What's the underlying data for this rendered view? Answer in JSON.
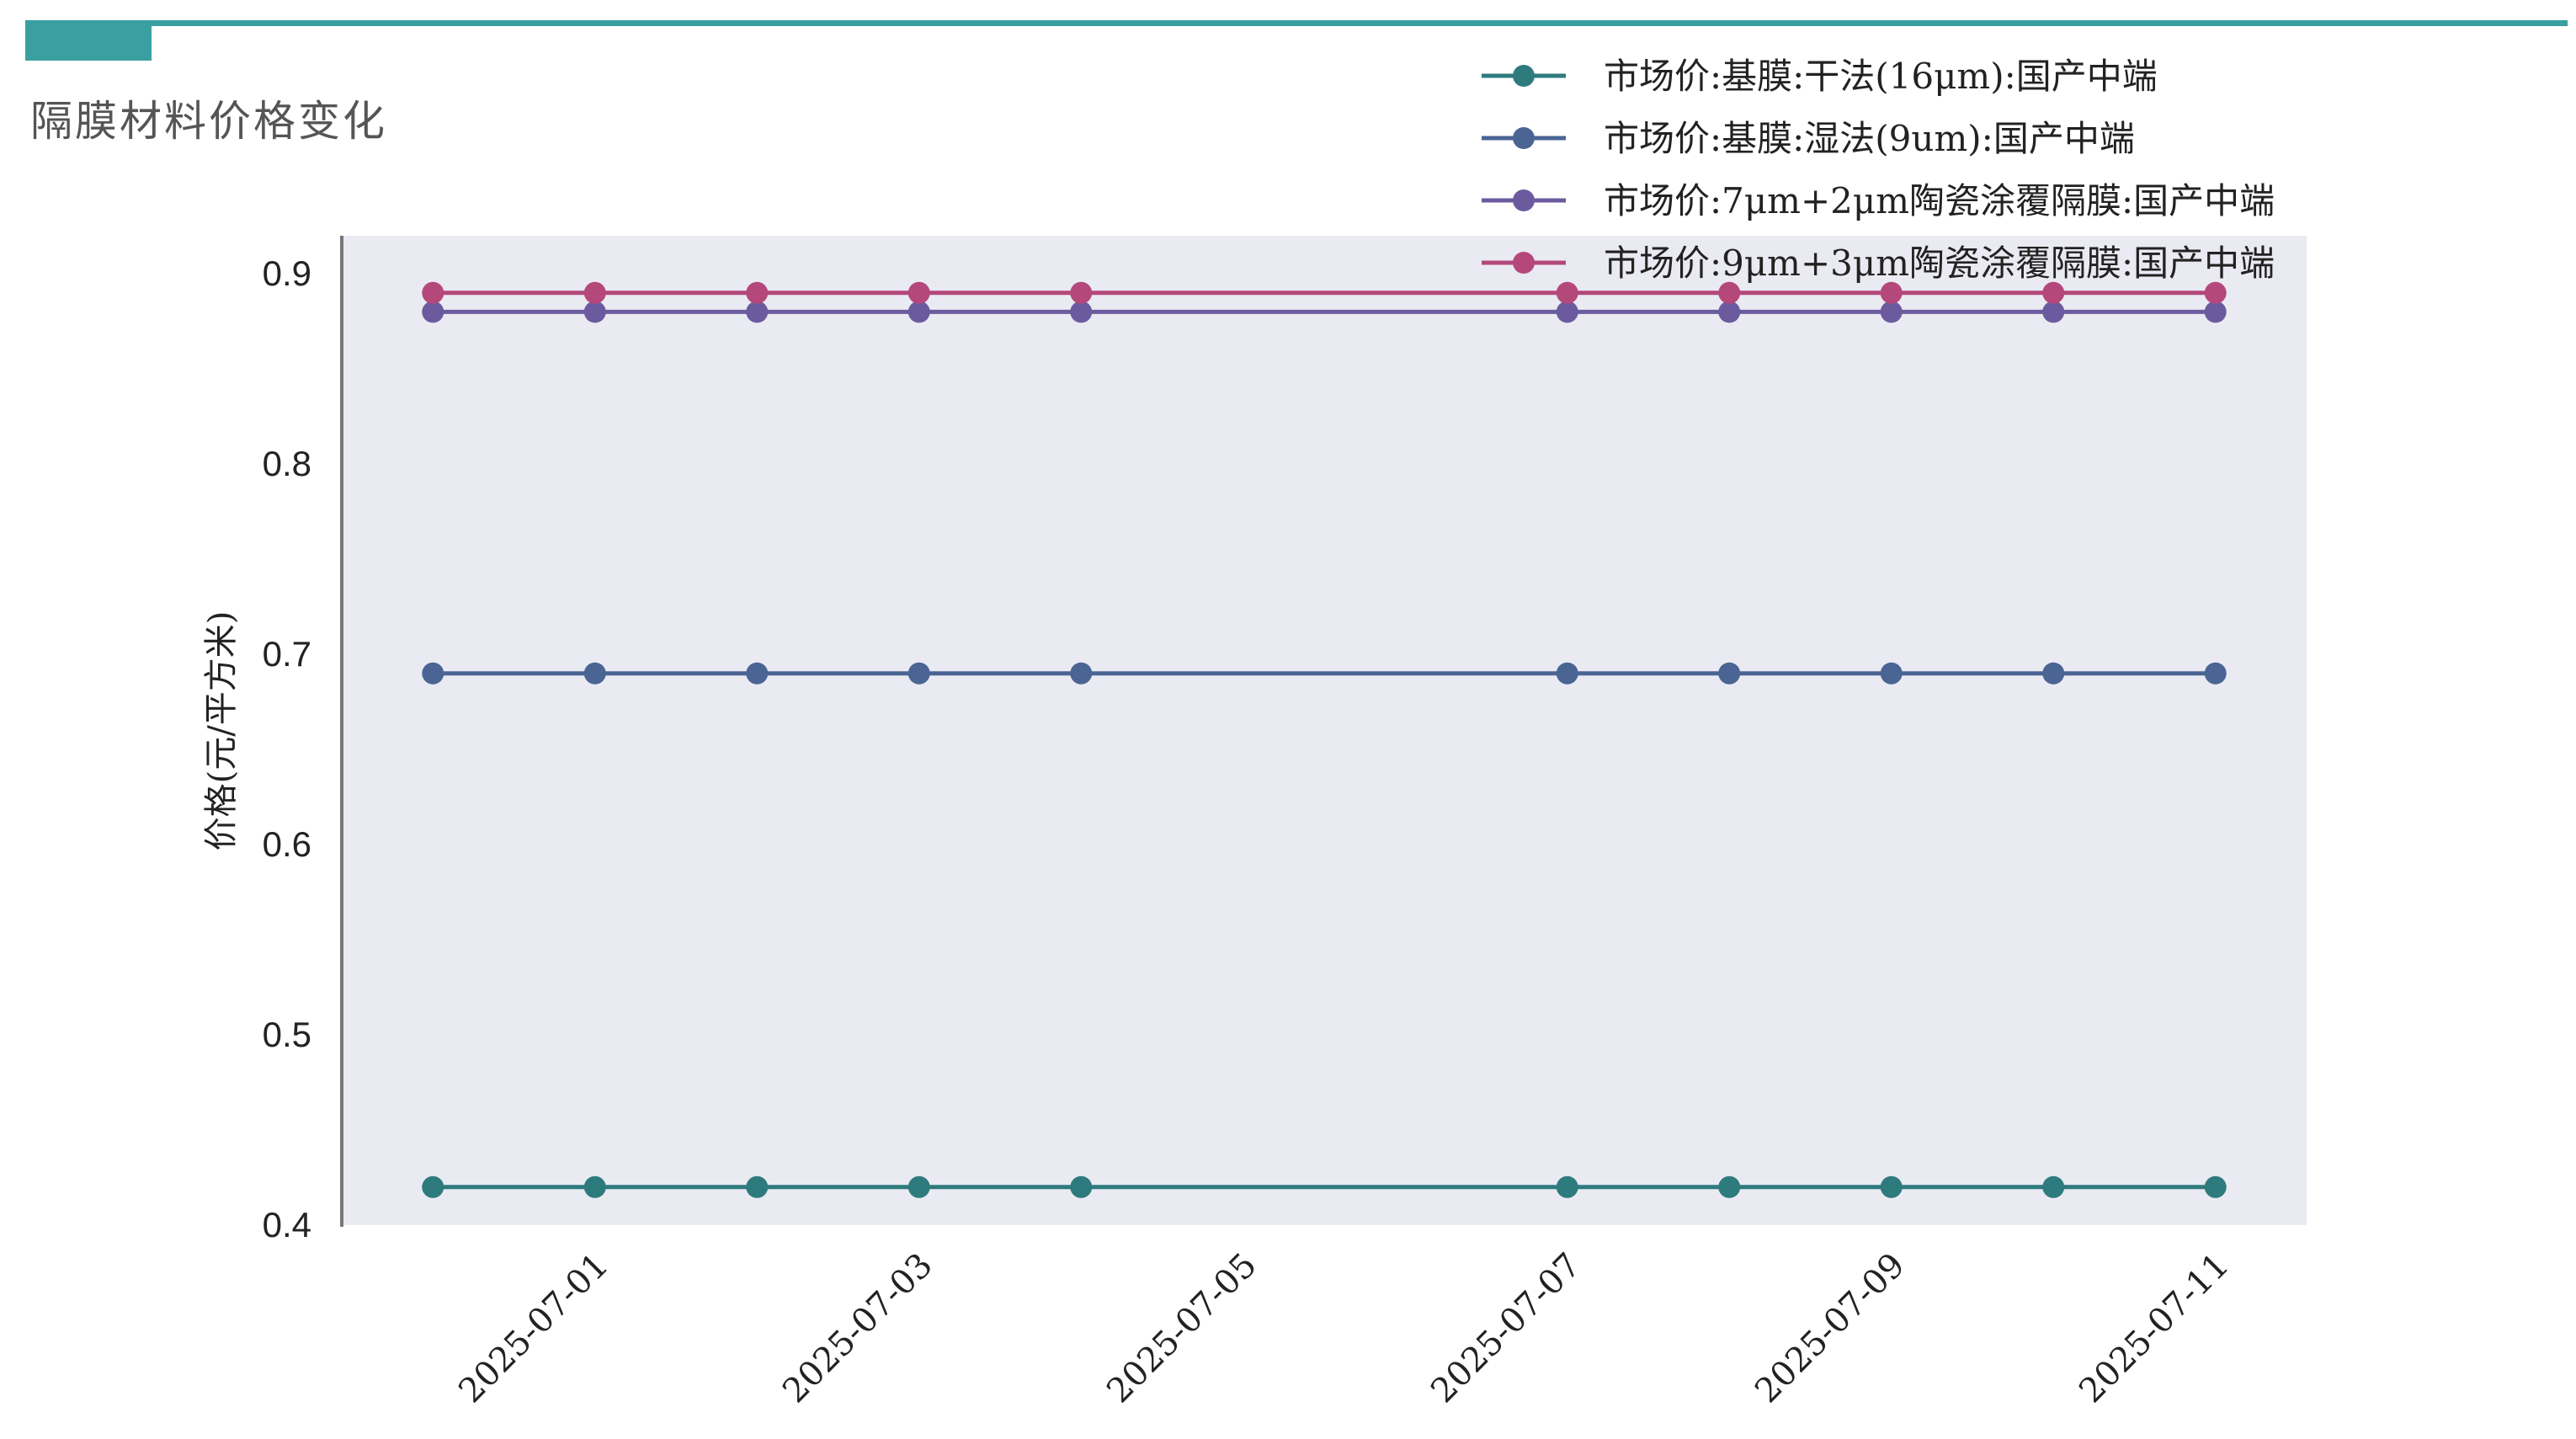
{
  "page": {
    "title": "隔膜材料价格变化"
  },
  "colors": {
    "accent": "#3a9fa0",
    "plot_background": "#eaeaf2"
  },
  "chart_data": {
    "type": "line",
    "title": "",
    "xlabel": "",
    "ylabel": "价格(元/平方米)",
    "ylim": [
      0.4,
      0.92
    ],
    "yticks": [
      0.4,
      0.5,
      0.6,
      0.7,
      0.8,
      0.9
    ],
    "ytick_labels": [
      "0.4",
      "0.5",
      "0.6",
      "0.7",
      "0.8",
      "0.9"
    ],
    "xlim": [
      "2025-06-29T10:30",
      "2025-07-11T13:30"
    ],
    "xticks": [
      "2025-07-01",
      "2025-07-03",
      "2025-07-05",
      "2025-07-07",
      "2025-07-09",
      "2025-07-11"
    ],
    "x": [
      "2025-06-30",
      "2025-07-01",
      "2025-07-02",
      "2025-07-03",
      "2025-07-04",
      "2025-07-07",
      "2025-07-08",
      "2025-07-09",
      "2025-07-10",
      "2025-07-11"
    ],
    "grid": false,
    "legend_position": "top-right",
    "series": [
      {
        "name": "市场价:基膜:干法(16μm):国产中端",
        "color": "#2e7b7e",
        "values": [
          0.42,
          0.42,
          0.42,
          0.42,
          0.42,
          0.42,
          0.42,
          0.42,
          0.42,
          0.42
        ]
      },
      {
        "name": "市场价:基膜:湿法(9um):国产中端",
        "color": "#4a6594",
        "values": [
          0.69,
          0.69,
          0.69,
          0.69,
          0.69,
          0.69,
          0.69,
          0.69,
          0.69,
          0.69
        ]
      },
      {
        "name": "市场价:7μm+2μm陶瓷涂覆隔膜:国产中端",
        "color": "#6b5b9e",
        "values": [
          0.88,
          0.88,
          0.88,
          0.88,
          0.88,
          0.88,
          0.88,
          0.88,
          0.88,
          0.88
        ]
      },
      {
        "name": "市场价:9μm+3μm陶瓷涂覆隔膜:国产中端",
        "color": "#b4487a",
        "values": [
          0.89,
          0.89,
          0.89,
          0.89,
          0.89,
          0.89,
          0.89,
          0.89,
          0.89,
          0.89
        ]
      }
    ]
  }
}
